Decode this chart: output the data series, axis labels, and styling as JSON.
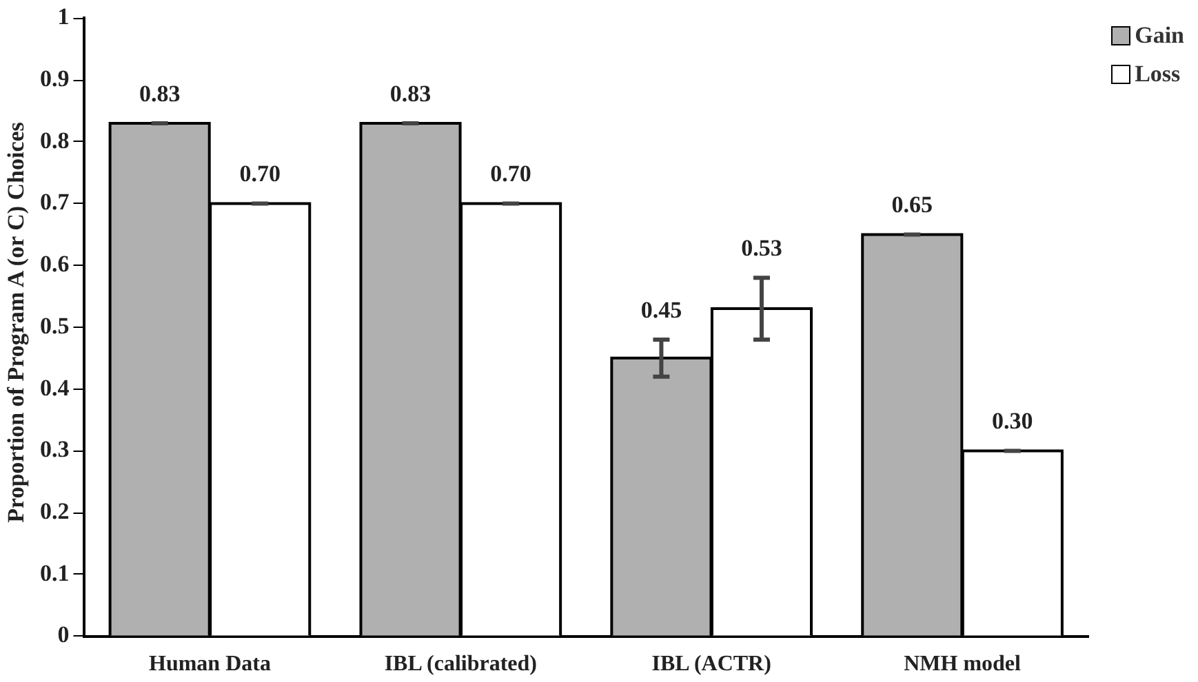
{
  "chart_data": {
    "type": "bar",
    "ylabel": "Proportion of Program A (or C) Choices",
    "categories": [
      "Human Data",
      "IBL (calibrated)",
      "IBL (ACTR)",
      "NMH model"
    ],
    "series": [
      {
        "name": "Gain",
        "color": "#b0b0b0",
        "values": [
          0.83,
          0.83,
          0.45,
          0.65
        ],
        "errors": [
          0,
          0,
          0.03,
          0
        ],
        "value_labels": [
          "0.83",
          "0.83",
          "0.45",
          "0.65"
        ]
      },
      {
        "name": "Loss",
        "color": "#ffffff",
        "values": [
          0.7,
          0.7,
          0.53,
          0.3
        ],
        "errors": [
          0,
          0,
          0.05,
          0
        ],
        "value_labels": [
          "0.70",
          "0.70",
          "0.53",
          "0.30"
        ]
      }
    ],
    "ylim": [
      0,
      1
    ],
    "yticks": [
      0,
      0.1,
      0.2,
      0.3,
      0.4,
      0.5,
      0.6,
      0.7,
      0.8,
      0.9,
      1
    ],
    "grid": false,
    "legend": "top right"
  }
}
